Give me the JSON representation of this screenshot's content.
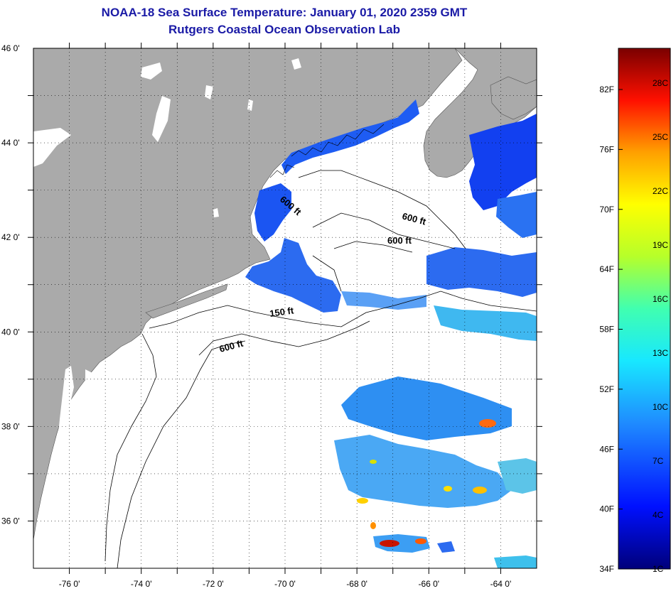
{
  "header": {
    "title": "NOAA-18 Sea Surface Temperature:  January 01, 2020 2359 GMT",
    "subtitle": "Rutgers Coastal Ocean Observation Lab"
  },
  "map": {
    "lon_range": [
      -77,
      -63
    ],
    "lat_range": [
      35,
      46
    ],
    "lon_ticks": [
      {
        "value": -76,
        "label": "-76 0'"
      },
      {
        "value": -74,
        "label": "-74 0'"
      },
      {
        "value": -72,
        "label": "-72 0'"
      },
      {
        "value": -70,
        "label": "-70 0'"
      },
      {
        "value": -68,
        "label": "-68 0'"
      },
      {
        "value": -66,
        "label": "-66 0'"
      },
      {
        "value": -64,
        "label": "-64 0'"
      }
    ],
    "lat_ticks": [
      {
        "value": 46,
        "label": "46 0'"
      },
      {
        "value": 44,
        "label": "44 0'"
      },
      {
        "value": 42,
        "label": "42 0'"
      },
      {
        "value": 40,
        "label": "40 0'"
      },
      {
        "value": 38,
        "label": "38 0'"
      },
      {
        "value": 36,
        "label": "36 0'"
      }
    ],
    "contour_labels": {
      "a": "600 ft",
      "b": "600 ft",
      "c": "600 ft",
      "d": "150 ft",
      "e": "600 ft"
    }
  },
  "colorbar": {
    "fahrenheit": [
      "82F",
      "76F",
      "70F",
      "64F",
      "58F",
      "52F",
      "46F",
      "40F",
      "34F"
    ],
    "celsius": [
      "28C",
      "25C",
      "22C",
      "19C",
      "16C",
      "13C",
      "10C",
      "7C",
      "4C",
      "1C"
    ]
  },
  "colors": {
    "title": "#1a1aa6",
    "land": "#aaaaaa",
    "ocean": "#ffffff",
    "cold": "#0030f0",
    "mid": "#3a7ef0",
    "warm": "#ff3000"
  }
}
